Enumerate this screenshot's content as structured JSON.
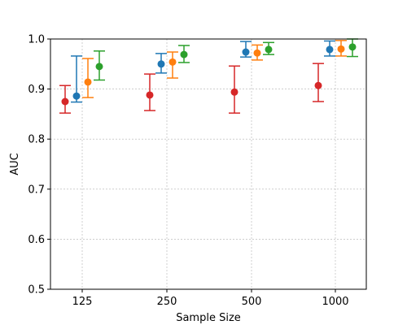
{
  "chart_data": {
    "type": "scatter",
    "xlabel": "Sample Size",
    "ylabel": "AUC",
    "categories": [
      "125",
      "250",
      "500",
      "1000"
    ],
    "ylim": [
      0.5,
      1.0
    ],
    "yticks": [
      0.5,
      0.6,
      0.7,
      0.8,
      0.9,
      1.0
    ],
    "grid": true,
    "legend": "none",
    "series": [
      {
        "color": "#d62728",
        "points": [
          {
            "x": "125",
            "y": 0.875,
            "lo": 0.852,
            "hi": 0.907
          },
          {
            "x": "250",
            "y": 0.888,
            "lo": 0.857,
            "hi": 0.93
          },
          {
            "x": "500",
            "y": 0.894,
            "lo": 0.852,
            "hi": 0.946
          },
          {
            "x": "1000",
            "y": 0.907,
            "lo": 0.875,
            "hi": 0.951
          }
        ]
      },
      {
        "color": "#1f77b4",
        "points": [
          {
            "x": "125",
            "y": 0.886,
            "lo": 0.874,
            "hi": 0.966
          },
          {
            "x": "250",
            "y": 0.95,
            "lo": 0.932,
            "hi": 0.971
          },
          {
            "x": "500",
            "y": 0.974,
            "lo": 0.964,
            "hi": 0.995
          },
          {
            "x": "1000",
            "y": 0.979,
            "lo": 0.966,
            "hi": 0.996
          }
        ]
      },
      {
        "color": "#ff7f0e",
        "points": [
          {
            "x": "125",
            "y": 0.914,
            "lo": 0.883,
            "hi": 0.961
          },
          {
            "x": "250",
            "y": 0.954,
            "lo": 0.922,
            "hi": 0.974
          },
          {
            "x": "500",
            "y": 0.972,
            "lo": 0.958,
            "hi": 0.988
          },
          {
            "x": "1000",
            "y": 0.98,
            "lo": 0.966,
            "hi": 0.997
          }
        ]
      },
      {
        "color": "#2ca02c",
        "points": [
          {
            "x": "125",
            "y": 0.945,
            "lo": 0.918,
            "hi": 0.976
          },
          {
            "x": "250",
            "y": 0.969,
            "lo": 0.953,
            "hi": 0.987
          },
          {
            "x": "500",
            "y": 0.979,
            "lo": 0.969,
            "hi": 0.993
          },
          {
            "x": "1000",
            "y": 0.984,
            "lo": 0.965,
            "hi": 1.0
          }
        ]
      }
    ]
  }
}
